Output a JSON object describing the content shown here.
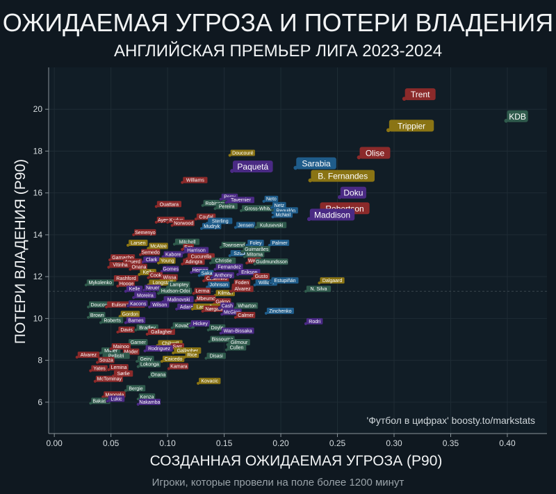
{
  "header": {
    "title": "ОЖИДАЕМАЯ УГРОЗА И ПОТЕРИ ВЛАДЕНИЯ",
    "subtitle": "АНГЛИЙСКАЯ ПРЕМЬЕР ЛИГА 2023-2024"
  },
  "footer": {
    "caption": "Игроки, которые провели на поле более 1200 минут"
  },
  "chart_data": {
    "type": "scatter",
    "xlabel": "СОЗДАННАЯ ОЖИДАЕМАЯ УГРОЗА (P90)",
    "ylabel": "ПОТЕРИ ВЛАДЕНИЯ (P90)",
    "xlim": [
      -0.005,
      0.435
    ],
    "ylim": [
      4.5,
      22
    ],
    "xticks": [
      "0.00",
      "0.05",
      "0.10",
      "0.15",
      "0.20",
      "0.25",
      "0.30",
      "0.35",
      "0.40"
    ],
    "yticks": [
      "6",
      "8",
      "10",
      "12",
      "14",
      "16",
      "18",
      "20"
    ],
    "grid": true,
    "watermark": "'Футбол в цифрах' boosty.to/markstats",
    "points": [
      {
        "name": "Trent",
        "x": 0.309,
        "y": 20.5,
        "color": "#8b2a2a",
        "big": true
      },
      {
        "name": "KDB",
        "x": 0.399,
        "y": 19.45,
        "color": "#2f5a4c",
        "big": true
      },
      {
        "name": "Trippier",
        "x": 0.295,
        "y": 19.0,
        "color": "#8a7414",
        "big": true
      },
      {
        "name": "Olise",
        "x": 0.269,
        "y": 17.7,
        "color": "#8b2a2a",
        "big": true
      },
      {
        "name": "Sarabia",
        "x": 0.213,
        "y": 17.2,
        "color": "#1f5c8a",
        "big": true
      },
      {
        "name": "Paquetá",
        "x": 0.157,
        "y": 17.05,
        "color": "#4a2a84",
        "big": true
      },
      {
        "name": "B. Fernandes",
        "x": 0.226,
        "y": 16.6,
        "color": "#8a7414",
        "big": true
      },
      {
        "name": "Doku",
        "x": 0.252,
        "y": 15.8,
        "color": "#4a2a84",
        "big": true
      },
      {
        "name": "Robertson",
        "x": 0.234,
        "y": 15.05,
        "color": "#8b2a2a",
        "big": true
      },
      {
        "name": "Maddison",
        "x": 0.225,
        "y": 14.75,
        "color": "#4a2a84",
        "big": true
      },
      {
        "name": "Doucouré",
        "x": 0.155,
        "y": 17.8,
        "color": "#8a7414"
      },
      {
        "name": "Williams",
        "x": 0.113,
        "y": 16.5,
        "color": "#8b2a2a"
      },
      {
        "name": "Ouattara",
        "x": 0.09,
        "y": 15.35,
        "color": "#8b2a2a"
      },
      {
        "name": "Robinson",
        "x": 0.131,
        "y": 15.4,
        "color": "#2f5a4c"
      },
      {
        "name": "Pereira",
        "x": 0.142,
        "y": 15.25,
        "color": "#2f5a4c"
      },
      {
        "name": "Perry",
        "x": 0.147,
        "y": 15.7,
        "color": "#4a2a84"
      },
      {
        "name": "Tavernier",
        "x": 0.152,
        "y": 15.55,
        "color": "#4a2a84"
      },
      {
        "name": "Gross-White",
        "x": 0.165,
        "y": 15.15,
        "color": "#2f5a4c"
      },
      {
        "name": "Neto",
        "x": 0.185,
        "y": 15.6,
        "color": "#1f5c8a"
      },
      {
        "name": "Netz",
        "x": 0.192,
        "y": 15.3,
        "color": "#1f5c8a"
      },
      {
        "name": "Reguilón",
        "x": 0.193,
        "y": 15.05,
        "color": "#1f5c8a"
      },
      {
        "name": "McNeil",
        "x": 0.193,
        "y": 14.85,
        "color": "#1f5c8a"
      },
      {
        "name": "Ayew",
        "x": 0.09,
        "y": 14.6,
        "color": "#8b2a2a"
      },
      {
        "name": "Kudus",
        "x": 0.1,
        "y": 14.6,
        "color": "#8b2a2a"
      },
      {
        "name": "Norwood",
        "x": 0.104,
        "y": 14.45,
        "color": "#8b2a2a"
      },
      {
        "name": "Coufal",
        "x": 0.125,
        "y": 14.75,
        "color": "#8b2a2a"
      },
      {
        "name": "Sterling",
        "x": 0.135,
        "y": 14.55,
        "color": "#1f5c8a"
      },
      {
        "name": "Mudryk",
        "x": 0.13,
        "y": 14.3,
        "color": "#1f5c8a"
      },
      {
        "name": "Jensen",
        "x": 0.16,
        "y": 14.35,
        "color": "#1f5c8a"
      },
      {
        "name": "Kulusevski",
        "x": 0.178,
        "y": 14.35,
        "color": "#2f5a4c"
      },
      {
        "name": "Semenyo",
        "x": 0.07,
        "y": 14.0,
        "color": "#8b2a2a"
      },
      {
        "name": "Mitchell",
        "x": 0.106,
        "y": 13.55,
        "color": "#2f5a4c"
      },
      {
        "name": "Larsen",
        "x": 0.065,
        "y": 13.5,
        "color": "#8a7414"
      },
      {
        "name": "McAtee",
        "x": 0.083,
        "y": 13.35,
        "color": "#8a7414"
      },
      {
        "name": "Eze",
        "x": 0.113,
        "y": 13.3,
        "color": "#8b2a2a"
      },
      {
        "name": "Townsend",
        "x": 0.147,
        "y": 13.4,
        "color": "#2f5a4c"
      },
      {
        "name": "Foley",
        "x": 0.17,
        "y": 13.5,
        "color": "#1f5c8a"
      },
      {
        "name": "Palmer",
        "x": 0.19,
        "y": 13.5,
        "color": "#1f5c8a"
      },
      {
        "name": "Harrison",
        "x": 0.114,
        "y": 13.15,
        "color": "#4a2a84"
      },
      {
        "name": "Szoboszlai",
        "x": 0.155,
        "y": 13.0,
        "color": "#1f5c8a"
      },
      {
        "name": "Guimarães",
        "x": 0.166,
        "y": 13.2,
        "color": "#2f5a4c"
      },
      {
        "name": "Mitoma",
        "x": 0.168,
        "y": 12.95,
        "color": "#2f5a4c"
      },
      {
        "name": "Semedo",
        "x": 0.076,
        "y": 13.05,
        "color": "#8b2a2a"
      },
      {
        "name": "Kabore",
        "x": 0.096,
        "y": 12.95,
        "color": "#4a2a84"
      },
      {
        "name": "Cucurella",
        "x": 0.117,
        "y": 12.85,
        "color": "#8b2a2a"
      },
      {
        "name": "Garnacho",
        "x": 0.049,
        "y": 12.8,
        "color": "#8b2a2a"
      },
      {
        "name": "Clark",
        "x": 0.078,
        "y": 12.7,
        "color": "#4a2a84"
      },
      {
        "name": "Young",
        "x": 0.092,
        "y": 12.65,
        "color": "#8a7414"
      },
      {
        "name": "Adingra",
        "x": 0.113,
        "y": 12.6,
        "color": "#8b2a2a"
      },
      {
        "name": "Christie",
        "x": 0.138,
        "y": 12.65,
        "color": "#2f5a4c"
      },
      {
        "name": "Webb",
        "x": 0.17,
        "y": 12.65,
        "color": "#8b2a2a"
      },
      {
        "name": "Gudmundsson",
        "x": 0.177,
        "y": 12.6,
        "color": "#2f5a4c"
      },
      {
        "name": "Aguerd",
        "x": 0.06,
        "y": 12.6,
        "color": "#8b2a2a"
      },
      {
        "name": "Vitinha",
        "x": 0.048,
        "y": 12.45,
        "color": "#8b2a2a"
      },
      {
        "name": "Onana",
        "x": 0.067,
        "y": 12.35,
        "color": "#8b2a2a"
      },
      {
        "name": "Gomes",
        "x": 0.095,
        "y": 12.25,
        "color": "#4a2a84"
      },
      {
        "name": "Hemon",
        "x": 0.121,
        "y": 12.2,
        "color": "#4a2a84"
      },
      {
        "name": "Fernandez",
        "x": 0.142,
        "y": 12.35,
        "color": "#4a2a84"
      },
      {
        "name": "Kelly",
        "x": 0.075,
        "y": 12.1,
        "color": "#8a7414"
      },
      {
        "name": "Cook",
        "x": 0.083,
        "y": 11.95,
        "color": "#8b2a2a"
      },
      {
        "name": "Saka",
        "x": 0.128,
        "y": 12.05,
        "color": "#1f5c8a"
      },
      {
        "name": "Erikson",
        "x": 0.162,
        "y": 12.1,
        "color": "#4a2a84"
      },
      {
        "name": "Gusto",
        "x": 0.175,
        "y": 11.9,
        "color": "#8b2a2a"
      },
      {
        "name": "Rashford",
        "x": 0.052,
        "y": 11.8,
        "color": "#8b2a2a"
      },
      {
        "name": "Wissa",
        "x": 0.094,
        "y": 11.85,
        "color": "#8b2a2a"
      },
      {
        "name": "Casemiro",
        "x": 0.132,
        "y": 11.8,
        "color": "#8b2a2a"
      },
      {
        "name": "Anthony",
        "x": 0.139,
        "y": 11.95,
        "color": "#4a2a84"
      },
      {
        "name": "Mykolenko",
        "x": 0.028,
        "y": 11.6,
        "color": "#2f5a4c"
      },
      {
        "name": "Hooge",
        "x": 0.056,
        "y": 11.55,
        "color": "#8b2a2a"
      },
      {
        "name": "Longstaff",
        "x": 0.083,
        "y": 11.6,
        "color": "#8a7414"
      },
      {
        "name": "Lamptey",
        "x": 0.1,
        "y": 11.5,
        "color": "#2f5a4c"
      },
      {
        "name": "Johnson",
        "x": 0.135,
        "y": 11.5,
        "color": "#1f5c8a"
      },
      {
        "name": "Foden",
        "x": 0.158,
        "y": 11.6,
        "color": "#8b2a2a"
      },
      {
        "name": "William",
        "x": 0.177,
        "y": 11.6,
        "color": "#1f5c8a"
      },
      {
        "name": "Estupiñán",
        "x": 0.191,
        "y": 11.7,
        "color": "#1f5c8a"
      },
      {
        "name": "Dalgaard",
        "x": 0.234,
        "y": 11.7,
        "color": "#8a7414"
      },
      {
        "name": "N. Silva",
        "x": 0.222,
        "y": 11.3,
        "color": "#2f5a4c"
      },
      {
        "name": "Kelle",
        "x": 0.063,
        "y": 11.3,
        "color": "#4a2a84"
      },
      {
        "name": "Neuer",
        "x": 0.079,
        "y": 11.35,
        "color": "#4a2a84"
      },
      {
        "name": "Hudson-Odoi",
        "x": 0.092,
        "y": 11.2,
        "color": "#2f5a4c"
      },
      {
        "name": "Lerma",
        "x": 0.123,
        "y": 11.2,
        "color": "#8b2a2a"
      },
      {
        "name": "Kilman",
        "x": 0.142,
        "y": 11.1,
        "color": "#8a7414"
      },
      {
        "name": "Alvarez",
        "x": 0.156,
        "y": 11.3,
        "color": "#8b2a2a"
      },
      {
        "name": "Moreira",
        "x": 0.07,
        "y": 11.0,
        "color": "#4a2a84"
      },
      {
        "name": "Malinovski",
        "x": 0.096,
        "y": 10.8,
        "color": "#4a2a84"
      },
      {
        "name": "Mbeumo",
        "x": 0.125,
        "y": 10.85,
        "color": "#8b2a2a"
      },
      {
        "name": "Gakpo",
        "x": 0.141,
        "y": 10.7,
        "color": "#8b2a2a"
      },
      {
        "name": "Zinchenko",
        "x": 0.187,
        "y": 10.25,
        "color": "#1f5c8a"
      },
      {
        "name": "Doucoure",
        "x": 0.03,
        "y": 10.55,
        "color": "#2f5a4c"
      },
      {
        "name": "Eulismartinez",
        "x": 0.046,
        "y": 10.55,
        "color": "#8b2a2a"
      },
      {
        "name": "Kacons",
        "x": 0.065,
        "y": 10.6,
        "color": "#4a2a84"
      },
      {
        "name": "Wilson",
        "x": 0.084,
        "y": 10.55,
        "color": "#4a2a84"
      },
      {
        "name": "Adarabioyo",
        "x": 0.108,
        "y": 10.45,
        "color": "#4a2a84"
      },
      {
        "name": "Lascelles",
        "x": 0.122,
        "y": 10.45,
        "color": "#8a7414"
      },
      {
        "name": "Nørgaard",
        "x": 0.131,
        "y": 10.35,
        "color": "#8b2a2a"
      },
      {
        "name": "Cash",
        "x": 0.146,
        "y": 10.5,
        "color": "#4a2a84"
      },
      {
        "name": "Wharton",
        "x": 0.16,
        "y": 10.5,
        "color": "#2f5a4c"
      },
      {
        "name": "McGinn",
        "x": 0.148,
        "y": 10.2,
        "color": "#4a2a84"
      },
      {
        "name": "Calmer",
        "x": 0.16,
        "y": 10.05,
        "color": "#8b2a2a"
      },
      {
        "name": "Rodri",
        "x": 0.222,
        "y": 9.75,
        "color": "#4a2a84"
      },
      {
        "name": "Brown",
        "x": 0.03,
        "y": 10.05,
        "color": "#2f5a4c"
      },
      {
        "name": "Gordon",
        "x": 0.058,
        "y": 10.1,
        "color": "#8a7414"
      },
      {
        "name": "Barnes",
        "x": 0.063,
        "y": 9.8,
        "color": "#4a2a84"
      },
      {
        "name": "Roberts",
        "x": 0.041,
        "y": 9.8,
        "color": "#2f5a4c"
      },
      {
        "name": "Davis",
        "x": 0.056,
        "y": 9.35,
        "color": "#8b2a2a"
      },
      {
        "name": "Bradley",
        "x": 0.072,
        "y": 9.45,
        "color": "#2f5a4c"
      },
      {
        "name": "Gallagher",
        "x": 0.082,
        "y": 9.25,
        "color": "#8b2a2a"
      },
      {
        "name": "Kovačić",
        "x": 0.104,
        "y": 9.55,
        "color": "#2f5a4c"
      },
      {
        "name": "Hickey",
        "x": 0.12,
        "y": 9.65,
        "color": "#4a2a84"
      },
      {
        "name": "Doyle",
        "x": 0.136,
        "y": 9.45,
        "color": "#2f5a4c"
      },
      {
        "name": "Wan-Bissaka",
        "x": 0.147,
        "y": 9.3,
        "color": "#4a2a84"
      },
      {
        "name": "Bissouma",
        "x": 0.137,
        "y": 8.9,
        "color": "#2f5a4c"
      },
      {
        "name": "Gilmour",
        "x": 0.153,
        "y": 8.75,
        "color": "#2f5a4c"
      },
      {
        "name": "Cullen",
        "x": 0.152,
        "y": 8.5,
        "color": "#2f5a4c"
      },
      {
        "name": "Garner",
        "x": 0.065,
        "y": 8.75,
        "color": "#2f5a4c"
      },
      {
        "name": "Chilwell",
        "x": 0.091,
        "y": 8.7,
        "color": "#8a7414"
      },
      {
        "name": "Sarr",
        "x": 0.102,
        "y": 8.55,
        "color": "#8b2a2a"
      },
      {
        "name": "Milner",
        "x": 0.041,
        "y": 8.35,
        "color": "#2f5a4c"
      },
      {
        "name": "Mainoo",
        "x": 0.05,
        "y": 8.55,
        "color": "#8b2a2a"
      },
      {
        "name": "Moder",
        "x": 0.06,
        "y": 8.3,
        "color": "#8b2a2a"
      },
      {
        "name": "Rodriguez",
        "x": 0.08,
        "y": 8.45,
        "color": "#4a2a84"
      },
      {
        "name": "Gallagher",
        "x": 0.105,
        "y": 8.35,
        "color": "#8a7414"
      },
      {
        "name": "Rice",
        "x": 0.115,
        "y": 8.15,
        "color": "#8a7414"
      },
      {
        "name": "Disasi",
        "x": 0.134,
        "y": 8.1,
        "color": "#2f5a4c"
      },
      {
        "name": "Alvarez",
        "x": 0.02,
        "y": 8.15,
        "color": "#8b2a2a"
      },
      {
        "name": "Pellistri",
        "x": 0.042,
        "y": 8.1,
        "color": "#2f5a4c"
      },
      {
        "name": "Souza",
        "x": 0.038,
        "y": 7.9,
        "color": "#8b2a2a"
      },
      {
        "name": "Geiry",
        "x": 0.073,
        "y": 7.95,
        "color": "#2f5a4c"
      },
      {
        "name": "Caicedo",
        "x": 0.095,
        "y": 7.95,
        "color": "#8a7414"
      },
      {
        "name": "Lokonga",
        "x": 0.074,
        "y": 7.7,
        "color": "#2f5a4c"
      },
      {
        "name": "Kamara",
        "x": 0.101,
        "y": 7.6,
        "color": "#8b2a2a"
      },
      {
        "name": "Yates",
        "x": 0.032,
        "y": 7.5,
        "color": "#8b2a2a"
      },
      {
        "name": "Lemina",
        "x": 0.048,
        "y": 7.55,
        "color": "#8b2a2a"
      },
      {
        "name": "Sørlie",
        "x": 0.052,
        "y": 7.25,
        "color": "#8b2a2a"
      },
      {
        "name": "Onana",
        "x": 0.084,
        "y": 7.2,
        "color": "#2f5a4c"
      },
      {
        "name": "McTominay",
        "x": 0.036,
        "y": 7.0,
        "color": "#8b2a2a"
      },
      {
        "name": "Kovacic",
        "x": 0.127,
        "y": 6.9,
        "color": "#8a7414"
      },
      {
        "name": "Bergie",
        "x": 0.063,
        "y": 6.55,
        "color": "#2f5a4c"
      },
      {
        "name": "Mangala",
        "x": 0.043,
        "y": 6.25,
        "color": "#8b2a2a"
      },
      {
        "name": "Kenza",
        "x": 0.074,
        "y": 6.15,
        "color": "#2f5a4c"
      },
      {
        "name": "Bakasa",
        "x": 0.032,
        "y": 5.95,
        "color": "#2f5a4c"
      },
      {
        "name": "Lukic",
        "x": 0.047,
        "y": 6.05,
        "color": "#4a2a84"
      },
      {
        "name": "Nakamba",
        "x": 0.074,
        "y": 5.9,
        "color": "#4a2a84"
      }
    ]
  }
}
